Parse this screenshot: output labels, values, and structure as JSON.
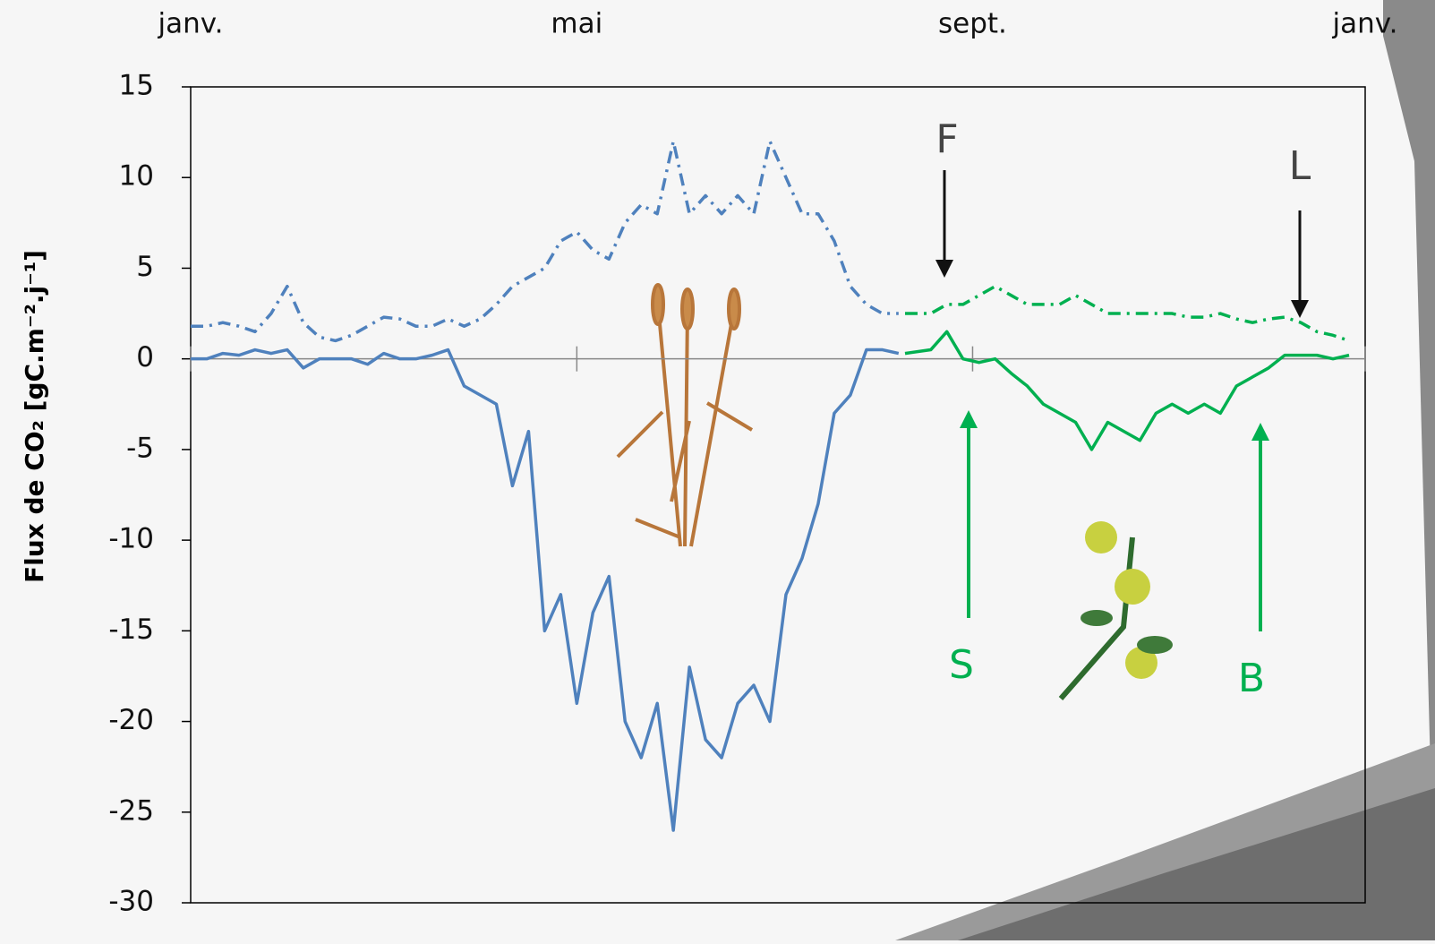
{
  "chart_data": {
    "type": "line",
    "ylabel": "Flux de CO₂ [gC.m⁻².j⁻¹]",
    "xlim": [
      0,
      365
    ],
    "xticks": [
      {
        "value": 0,
        "label": "janv."
      },
      {
        "value": 120,
        "label": "mai"
      },
      {
        "value": 243,
        "label": "sept."
      },
      {
        "value": 365,
        "label": "janv."
      }
    ],
    "ylim": [
      -30,
      15
    ],
    "yticks": [
      -30,
      -25,
      -20,
      -15,
      -10,
      -5,
      0,
      5,
      10,
      15
    ],
    "grid": false,
    "annotations": [
      "F",
      "L",
      "S",
      "B"
    ],
    "series": [
      {
        "color": "#4f81bd",
        "dashed": false,
        "x": [
          0,
          5,
          10,
          15,
          20,
          25,
          30,
          35,
          40,
          45,
          50,
          55,
          60,
          65,
          70,
          75,
          80,
          85,
          90,
          95,
          100,
          105,
          110,
          115,
          120,
          125,
          130,
          135,
          140,
          145,
          150,
          155,
          160,
          165,
          170,
          175,
          180,
          185,
          190,
          195,
          200,
          205,
          210,
          215,
          220
        ],
        "values": [
          0,
          0,
          0.3,
          0.2,
          0.5,
          0.3,
          0.5,
          -0.5,
          0,
          0,
          0,
          -0.3,
          0.3,
          0,
          0,
          0.2,
          0.5,
          -1.5,
          -2,
          -2.5,
          -7,
          -4,
          -15,
          -13,
          -19,
          -14,
          -12,
          -20,
          -22,
          -19,
          -26,
          -17,
          -21,
          -22,
          -19,
          -18,
          -20,
          -13,
          -11,
          -8,
          -3,
          -2,
          0.5,
          0.5,
          0.3
        ]
      },
      {
        "color": "#4f81bd",
        "dashed": true,
        "x": [
          0,
          5,
          10,
          15,
          20,
          25,
          30,
          35,
          40,
          45,
          50,
          55,
          60,
          65,
          70,
          75,
          80,
          85,
          90,
          95,
          100,
          105,
          110,
          115,
          120,
          125,
          130,
          135,
          140,
          145,
          150,
          155,
          160,
          165,
          170,
          175,
          180,
          185,
          190,
          195,
          200,
          205,
          210,
          215,
          220
        ],
        "values": [
          1.8,
          1.8,
          2,
          1.8,
          1.5,
          2.5,
          4,
          2,
          1.2,
          1,
          1.3,
          1.8,
          2.3,
          2.2,
          1.8,
          1.8,
          2.2,
          1.8,
          2.2,
          3,
          4,
          4.5,
          5,
          6.5,
          7,
          6,
          5.5,
          7.5,
          8.5,
          8,
          12,
          8,
          9,
          8,
          9,
          8,
          12,
          10,
          8,
          8,
          6.5,
          4,
          3,
          2.5,
          2.5
        ]
      },
      {
        "color": "#00b050",
        "dashed": false,
        "x": [
          222,
          230,
          235,
          240,
          245,
          250,
          255,
          260,
          265,
          270,
          275,
          280,
          285,
          290,
          295,
          300,
          305,
          310,
          315,
          320,
          325,
          330,
          335,
          340,
          345,
          350,
          355,
          360
        ],
        "values": [
          0.3,
          0.5,
          1.5,
          0,
          -0.2,
          0,
          -0.8,
          -1.5,
          -2.5,
          -3,
          -3.5,
          -5,
          -3.5,
          -4,
          -4.5,
          -3,
          -2.5,
          -3,
          -2.5,
          -3,
          -1.5,
          -1,
          -0.5,
          0.2,
          0.2,
          0.2,
          0,
          0.2
        ]
      },
      {
        "color": "#00b050",
        "dashed": true,
        "x": [
          222,
          230,
          235,
          240,
          245,
          250,
          255,
          260,
          265,
          270,
          275,
          280,
          285,
          290,
          295,
          300,
          305,
          310,
          315,
          320,
          325,
          330,
          335,
          340,
          345,
          350,
          355,
          360
        ],
        "values": [
          2.5,
          2.5,
          3,
          3,
          3.5,
          4,
          3.5,
          3,
          3,
          3,
          3.5,
          3,
          2.5,
          2.5,
          2.5,
          2.5,
          2.5,
          2.3,
          2.3,
          2.5,
          2.2,
          2,
          2.2,
          2.3,
          2,
          1.5,
          1.3,
          1
        ]
      }
    ]
  }
}
